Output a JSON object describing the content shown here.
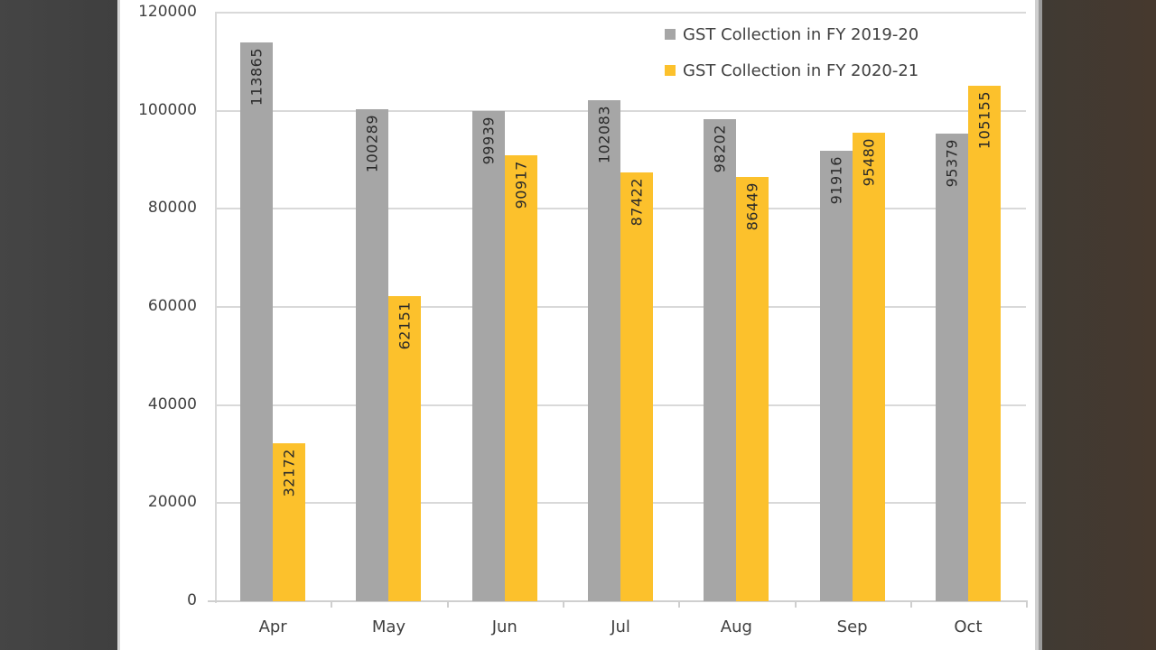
{
  "chart_data": {
    "type": "bar",
    "title": "",
    "xlabel": "",
    "ylabel": "",
    "categories": [
      "Apr",
      "May",
      "Jun",
      "Jul",
      "Aug",
      "Sep",
      "Oct"
    ],
    "series": [
      {
        "name": "GST Collection in FY 2019-20",
        "color": "#a6a6a6",
        "values": [
          113865,
          100289,
          99939,
          102083,
          98202,
          91916,
          95379
        ]
      },
      {
        "name": "GST Collection in FY 2020-21",
        "color": "#fcc12c",
        "values": [
          32172,
          62151,
          90917,
          87422,
          86449,
          95480,
          105155
        ]
      }
    ],
    "ylim": [
      0,
      120000
    ],
    "yticks": [
      "120000",
      "100000",
      "80000",
      "60000",
      "40000",
      "20000",
      "0"
    ],
    "grid": true,
    "legend_position": "top-right",
    "data_labels": "rotated-inside-top"
  },
  "legend": {
    "items": [
      {
        "label": "GST Collection in FY 2019-20",
        "color": "#a6a6a6"
      },
      {
        "label": "GST Collection in FY 2020-21",
        "color": "#fcc12c"
      }
    ]
  }
}
